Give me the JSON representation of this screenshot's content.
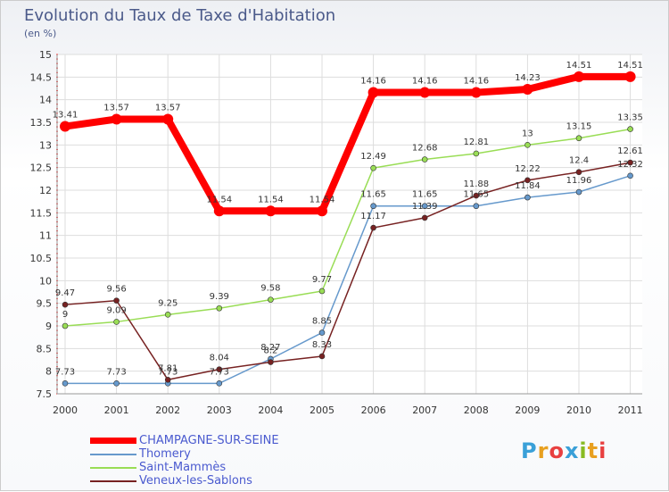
{
  "title": "Evolution du Taux de Taxe d'Habitation",
  "subtitle": "(en %)",
  "logo": "Proxiti",
  "chart_data": {
    "type": "line",
    "title": "Evolution du Taux de Taxe d'Habitation",
    "ylabel": "(en %)",
    "xlabel": "",
    "ylim": [
      7.5,
      15
    ],
    "grid": true,
    "yticks": [
      7.5,
      8,
      8.5,
      9,
      9.5,
      10,
      10.5,
      11,
      11.5,
      12,
      12.5,
      13,
      13.5,
      14,
      14.5,
      15
    ],
    "ytick_labels": [
      "7.5",
      "8",
      "8.5",
      "9",
      "9.5",
      "10",
      "10.5",
      "11",
      "11.5",
      "12",
      "12.5",
      "13",
      "13.5",
      "14",
      "14.5",
      "15"
    ],
    "categories": [
      "2000",
      "2001",
      "2002",
      "2003",
      "2004",
      "2005",
      "2006",
      "2007",
      "2008",
      "2009",
      "2010",
      "2011"
    ],
    "series": [
      {
        "name": "CHAMPAGNE-SUR-SEINE",
        "color": "#ff0000",
        "values": [
          13.41,
          13.57,
          13.57,
          11.54,
          11.54,
          11.54,
          14.16,
          14.16,
          14.16,
          14.23,
          14.51,
          14.51
        ],
        "labels": [
          "13.41",
          "13.57",
          "13.57",
          "11.54",
          "11.54",
          "11.54",
          "14.16",
          "14.16",
          "14.16",
          "14.23",
          "14.51",
          "14.51"
        ]
      },
      {
        "name": "Thomery",
        "color": "#6699cc",
        "values": [
          7.73,
          7.73,
          7.73,
          7.73,
          8.27,
          8.85,
          11.65,
          11.65,
          11.65,
          11.84,
          11.96,
          12.32
        ],
        "labels": [
          "7.73",
          "7.73",
          "7.73",
          "7.73",
          "8.27",
          "8.85",
          "11.65",
          "11.65",
          "11.65",
          "11.84",
          "11.96",
          "12.32"
        ]
      },
      {
        "name": "Saint-Mammès",
        "color": "#99dd55",
        "values": [
          9.0,
          9.09,
          9.25,
          9.39,
          9.58,
          9.77,
          12.49,
          12.68,
          12.81,
          13.0,
          13.15,
          13.35
        ],
        "labels": [
          "9",
          "9.09",
          "9.25",
          "9.39",
          "9.58",
          "9.77",
          "12.49",
          "12.68",
          "12.81",
          "13",
          "13.15",
          "13.35"
        ]
      },
      {
        "name": "Veneux-les-Sablons",
        "color": "#772222",
        "values": [
          9.47,
          9.56,
          7.81,
          8.04,
          8.2,
          8.33,
          11.17,
          11.39,
          11.88,
          12.22,
          12.4,
          12.61
        ],
        "labels": [
          "9.47",
          "9.56",
          "7.81",
          "8.04",
          "8.2",
          "8.33",
          "11.17",
          "11.39",
          "11.88",
          "12.22",
          "12.4",
          "12.61"
        ]
      }
    ]
  }
}
